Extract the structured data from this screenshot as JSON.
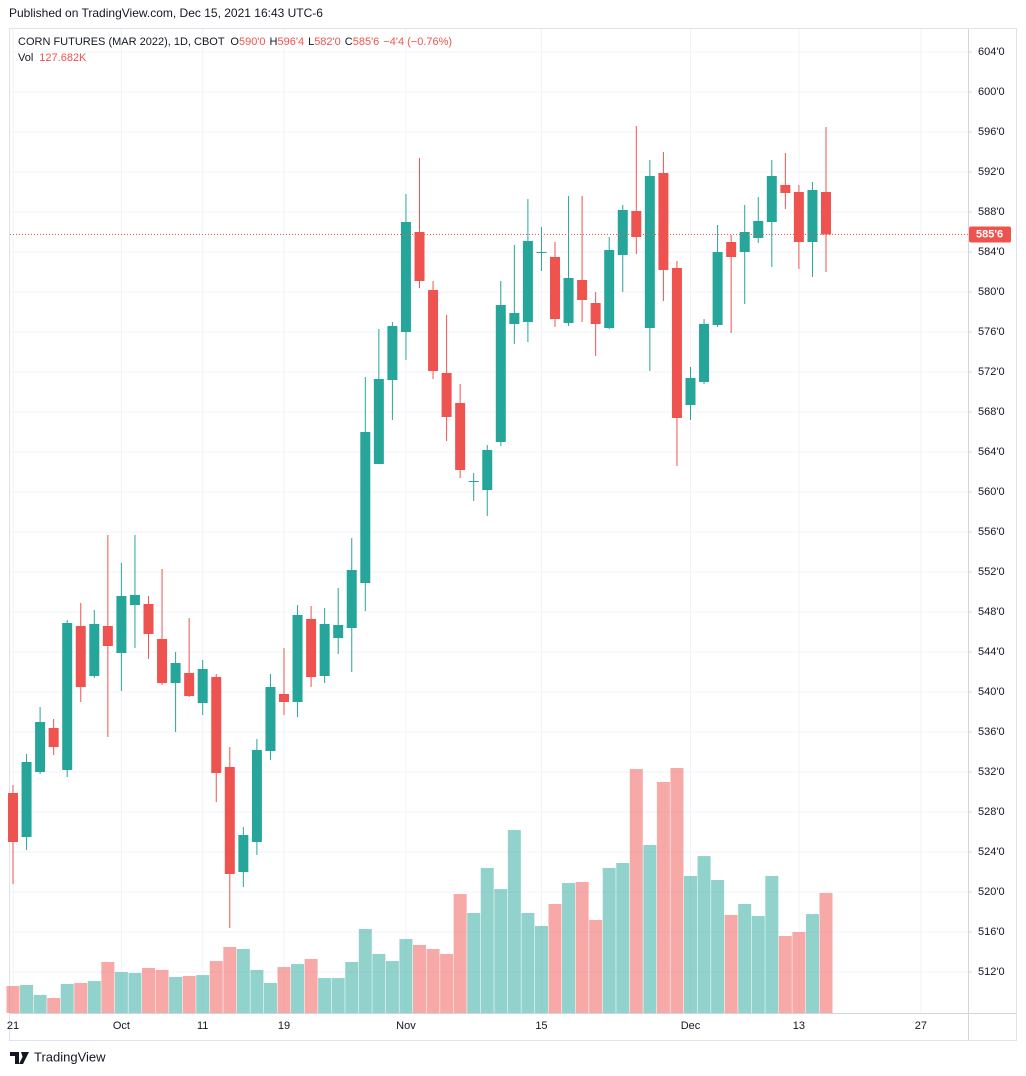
{
  "published": "Published on TradingView.com, Dec 15, 2021 16:43 UTC-6",
  "footer": {
    "brand": "TradingView"
  },
  "chart_data": {
    "type": "candlestick",
    "header": {
      "symbol": "CORN FUTURES (MAR 2022), 1D, CBOT",
      "fields": [
        {
          "key": "O",
          "value": "590'0"
        },
        {
          "key": "H",
          "value": "596'4"
        },
        {
          "key": "L",
          "value": "582'0"
        },
        {
          "key": "C",
          "value": "585'6"
        }
      ],
      "change": "−4'4 (−0.76%)",
      "vol": {
        "key": "Vol",
        "value": "127.682K"
      }
    },
    "up_color": "#26a69a",
    "down_color": "#ef5350",
    "categories": [
      "21",
      null,
      null,
      null,
      null,
      null,
      null,
      null,
      "Oct",
      null,
      null,
      null,
      null,
      null,
      "11",
      null,
      null,
      null,
      null,
      null,
      "19",
      null,
      null,
      null,
      null,
      null,
      null,
      null,
      null,
      "Nov",
      null,
      null,
      null,
      null,
      null,
      null,
      null,
      null,
      null,
      "15",
      null,
      null,
      null,
      null,
      null,
      null,
      null,
      null,
      null,
      null,
      "Dec",
      null,
      null,
      null,
      null,
      null,
      null,
      null,
      "13",
      null,
      null,
      null,
      null,
      null,
      null,
      null,
      null,
      "27"
    ],
    "open": [
      529.9,
      525.5,
      532.0,
      536.4,
      532.2,
      546.6,
      541.6,
      546.6,
      543.9,
      548.7,
      548.8,
      545.3,
      540.9,
      541.9,
      538.9,
      541.5,
      532.5,
      522.0,
      525.0,
      534.1,
      539.8,
      539.0,
      547.3,
      541.6,
      545.4,
      546.4,
      550.9,
      562.8,
      571.2,
      576.0,
      586.0,
      580.2,
      571.9,
      568.9,
      561.0,
      560.2,
      565.0,
      576.8,
      577.0,
      583.9,
      583.5,
      576.9,
      581.2,
      578.9,
      576.4,
      583.7,
      588.1,
      576.4,
      591.9,
      582.4,
      568.7,
      571.0,
      576.7,
      585.0,
      584.0,
      585.4,
      587.0,
      590.7,
      590.0,
      585.0,
      590.0,
      null,
      null,
      null,
      null,
      null,
      null,
      null
    ],
    "high": [
      530.7,
      533.8,
      538.5,
      537.3,
      547.2,
      548.9,
      548.2,
      555.7,
      552.9,
      555.7,
      549.6,
      552.3,
      544.0,
      547.4,
      543.2,
      541.8,
      534.5,
      526.5,
      535.3,
      541.8,
      544.4,
      548.7,
      548.6,
      548.4,
      550.4,
      555.4,
      571.5,
      576.3,
      577.0,
      589.8,
      593.4,
      581.1,
      577.7,
      570.8,
      561.9,
      564.7,
      581.1,
      584.7,
      589.3,
      586.5,
      585.0,
      589.6,
      589.6,
      580.0,
      585.5,
      588.7,
      596.6,
      593.2,
      594.0,
      583.1,
      572.5,
      577.3,
      586.7,
      585.7,
      588.7,
      589.5,
      593.2,
      593.9,
      590.7,
      591.0,
      596.5,
      null,
      null,
      null,
      null,
      null,
      null,
      null
    ],
    "low": [
      520.8,
      524.2,
      531.8,
      533.7,
      531.5,
      539.0,
      541.4,
      535.5,
      540.1,
      544.4,
      543.3,
      540.7,
      536.0,
      539.5,
      537.7,
      529.0,
      516.4,
      520.5,
      523.7,
      533.2,
      537.7,
      537.5,
      540.5,
      540.9,
      543.8,
      542.0,
      548.1,
      562.8,
      567.2,
      573.2,
      580.4,
      571.3,
      565.1,
      561.4,
      559.1,
      557.6,
      564.6,
      574.8,
      575.0,
      582.1,
      576.5,
      576.6,
      577.0,
      573.6,
      576.3,
      580.0,
      583.8,
      572.1,
      579.1,
      562.6,
      567.2,
      570.8,
      576.5,
      575.9,
      578.8,
      584.9,
      582.5,
      588.3,
      582.3,
      581.5,
      582.0,
      null,
      null,
      null,
      null,
      null,
      null,
      null
    ],
    "close": [
      525.0,
      533.0,
      537.0,
      534.5,
      546.9,
      540.5,
      546.8,
      544.6,
      549.6,
      549.7,
      545.8,
      540.9,
      542.9,
      539.6,
      542.3,
      531.9,
      521.8,
      525.7,
      534.2,
      540.5,
      539.0,
      547.7,
      541.5,
      546.8,
      546.7,
      552.2,
      566.0,
      571.3,
      576.6,
      587.0,
      581.1,
      572.1,
      567.5,
      562.2,
      561.1,
      564.2,
      578.7,
      577.9,
      585.1,
      584.0,
      577.3,
      581.4,
      579.2,
      576.8,
      584.2,
      588.2,
      585.5,
      591.6,
      582.2,
      567.4,
      571.4,
      576.8,
      584.0,
      583.5,
      586.0,
      587.1,
      591.6,
      589.9,
      585.0,
      590.2,
      585.75,
      null,
      null,
      null,
      null,
      null,
      null,
      null
    ],
    "volume": [
      28700,
      29800,
      19200,
      16000,
      30900,
      31900,
      34000,
      54300,
      43600,
      42600,
      47900,
      45800,
      38300,
      39400,
      40400,
      55300,
      70200,
      68100,
      45800,
      31900,
      48900,
      52100,
      57500,
      37200,
      37200,
      54300,
      89400,
      62800,
      55300,
      78700,
      72400,
      68100,
      62800,
      126600,
      106400,
      154300,
      131900,
      194700,
      106400,
      92600,
      116000,
      138300,
      139400,
      99000,
      154300,
      159600,
      259600,
      178800,
      245800,
      260700,
      145800,
      167000,
      141500,
      104300,
      116000,
      103200,
      145800,
      81900,
      86200,
      105300,
      127682,
      null,
      null,
      null,
      null,
      null,
      null,
      null
    ],
    "ylim": [
      507.9,
      606.2
    ],
    "yticks": [
      {
        "value": 512,
        "label": "512'0"
      },
      {
        "value": 516,
        "label": "516'0"
      },
      {
        "value": 520,
        "label": "520'0"
      },
      {
        "value": 524,
        "label": "524'0"
      },
      {
        "value": 528,
        "label": "528'0"
      },
      {
        "value": 532,
        "label": "532'0"
      },
      {
        "value": 536,
        "label": "536'0"
      },
      {
        "value": 540,
        "label": "540'0"
      },
      {
        "value": 544,
        "label": "544'0"
      },
      {
        "value": 548,
        "label": "548'0"
      },
      {
        "value": 552,
        "label": "552'0"
      },
      {
        "value": 556,
        "label": "556'0"
      },
      {
        "value": 560,
        "label": "560'0"
      },
      {
        "value": 564,
        "label": "564'0"
      },
      {
        "value": 568,
        "label": "568'0"
      },
      {
        "value": 572,
        "label": "572'0"
      },
      {
        "value": 576,
        "label": "576'0"
      },
      {
        "value": 580,
        "label": "580'0"
      },
      {
        "value": 584,
        "label": "584'0"
      },
      {
        "value": 588,
        "label": "588'0"
      },
      {
        "value": 592,
        "label": "592'0"
      },
      {
        "value": 596,
        "label": "596'0"
      },
      {
        "value": 600,
        "label": "600'0"
      },
      {
        "value": 604,
        "label": "604'0"
      }
    ],
    "last_price": {
      "value": 585.75,
      "label": "585'6"
    },
    "grid": true
  }
}
